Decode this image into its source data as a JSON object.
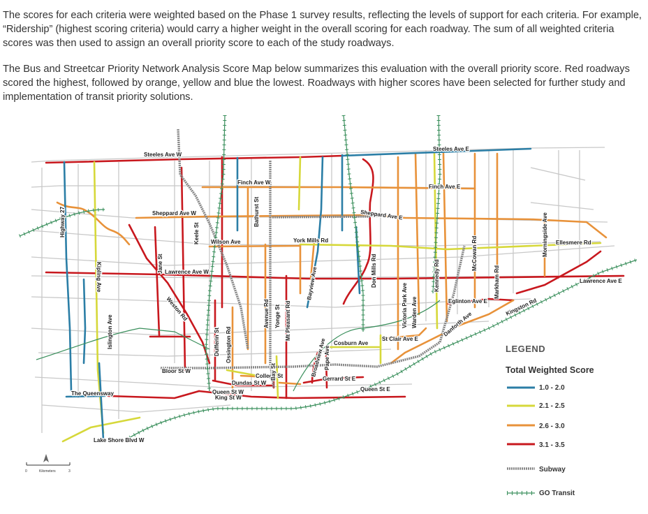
{
  "intro": {
    "paragraph1": "The scores for each criteria were weighted based on the Phase 1 survey results, reflecting the levels of support for each criteria. For example, “Ridership” (highest scoring criteria) would carry a higher weight in the overall scoring for each roadway. The sum of all weighted criteria scores was then used to assign an overall priority score to each of the study roadways.",
    "paragraph2": "The Bus and Streetcar Priority Network Analysis Score Map below summarizes this evaluation with the overall priority score. Red roadways scored the highest, followed by orange, yellow and blue the lowest. Roadways with higher scores have been selected for further study and implementation of transit priority solutions."
  },
  "colors": {
    "red": "#c8181e",
    "orange": "#e8923a",
    "yellow": "#d6d83a",
    "blue": "#2b7ea6",
    "subway": "#888888",
    "go_transit": "#3a8f5c",
    "base_road": "#c8c8c8"
  },
  "map": {
    "labels": {
      "steeles_w": "Steeles Ave W",
      "steeles_e": "Steeles Ave E",
      "finch_w": "Finch Ave W",
      "finch_e": "Finch Ave E",
      "sheppard_w": "Sheppard Ave W",
      "sheppard_e": "Sheppard Ave E",
      "wilson": "Wilson Ave",
      "york_mills": "York Mills Rd",
      "ellesmere": "Ellesmere Rd",
      "lawrence_w": "Lawrence Ave W",
      "lawrence_e": "Lawrence Ave E",
      "eglinton_e": "Eglinton Ave E",
      "kingston": "Kingston Rd",
      "danforth": "Danforth Ave",
      "st_clair_e": "St Clair Ave E",
      "cosburn": "Cosburn Ave",
      "bloor_w": "Bloor St W",
      "college": "College St",
      "dundas_w": "Dundas St W",
      "gerrard_e": "Gerrard St E",
      "queen_w": "Queen St W",
      "king_w": "King St W",
      "queen_e": "Queen St E",
      "queensway": "The Queensway",
      "lake_shore": "Lake Shore Blvd W",
      "weston": "Weston Rd",
      "highway27": "Highway 27",
      "kipling": "Kipling Ave",
      "islington": "Islington Ave",
      "jane": "Jane St",
      "keele": "Keele St",
      "bathurst": "Bathurst St",
      "dufferin": "Dufferin St",
      "ossington": "Ossington Rd",
      "avenue": "Avenue Rd",
      "yonge": "Yonge St",
      "mt_pleasant": "Mt Pleasant Rd",
      "bayview": "Bayview Ave",
      "don_mills": "Don Mills Rd",
      "broadview": "Broadview Ave",
      "pape": "Pape Ave",
      "bay": "Bay St",
      "victoria_park": "Victoria Park Ave",
      "warden": "Warden Ave",
      "kennedy": "Kennedy Rd",
      "mccowan": "McCowan Rd",
      "markham": "Markham Rd",
      "morningside": "Morningside Ave"
    }
  },
  "legend": {
    "title": "LEGEND",
    "subtitle": "Total Weighted Score",
    "items": [
      {
        "label": "1.0 - 2.0",
        "color": "#2b7ea6"
      },
      {
        "label": "2.1 - 2.5",
        "color": "#d6d83a"
      },
      {
        "label": "2.6 - 3.0",
        "color": "#e8923a"
      },
      {
        "label": "3.1 - 3.5",
        "color": "#c8181e"
      }
    ],
    "subway_label": "Subway",
    "go_label": "GO Transit"
  },
  "scale": {
    "zero": "0",
    "three": "3",
    "unit": "Kilometers"
  }
}
